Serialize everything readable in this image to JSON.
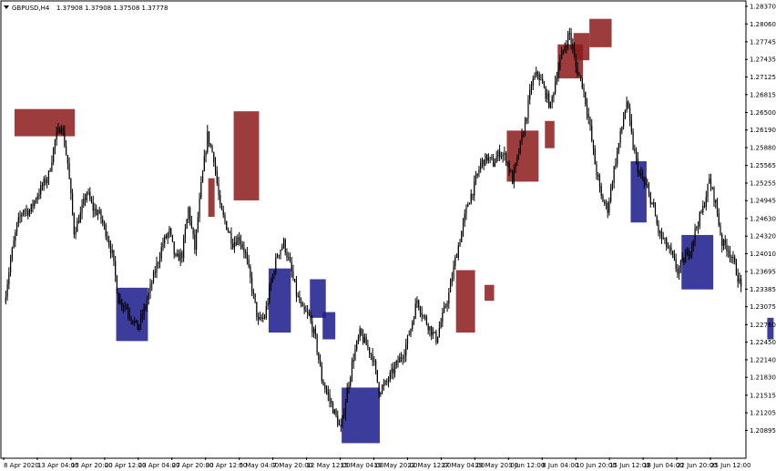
{
  "header": {
    "symbol_label": "GBPUSD,H4",
    "quote_values": "1.37908 1.37908 1.37508 1.37778",
    "menu_arrow_icon": "triangle-down-icon"
  },
  "colors": {
    "supply_zone": "#8B1A1A",
    "demand_zone": "#1A1A8B",
    "candle": "#000000",
    "frame": "#000000",
    "background": "#FFFFFF"
  },
  "chart_data": {
    "type": "line",
    "title": "GBPUSD,H4",
    "subtitle": "1.37908 1.37908 1.37508 1.37778",
    "ylim": [
      1.2042,
      1.2845
    ],
    "y_ticks": [
      "1.28370",
      "1.28060",
      "1.27745",
      "1.27435",
      "1.27125",
      "1.26815",
      "1.26500",
      "1.26190",
      "1.25880",
      "1.25565",
      "1.25255",
      "1.24945",
      "1.24630",
      "1.24320",
      "1.24010",
      "1.23695",
      "1.23385",
      "1.23075",
      "1.22760",
      "1.22450",
      "1.22140",
      "1.21830",
      "1.21515",
      "1.21205",
      "1.20895"
    ],
    "x_ticks": [
      "8 Apr 2020",
      "13 Apr 04:00",
      "15 Apr 20:00",
      "20 Apr 12:00",
      "23 Apr 04:00",
      "27 Apr 20:00",
      "30 Apr 12:00",
      "5 May 04:00",
      "7 May 20:00",
      "12 May 12:00",
      "15 May 04:00",
      "19 May 20:00",
      "22 May 12:00",
      "27 May 04:00",
      "29 May 20:00",
      "3 Jun 12:00",
      "8 Jun 04:00",
      "10 Jun 20:00",
      "15 Jun 12:00",
      "18 Jun 04:00",
      "22 Jun 20:00",
      "25 Jun 12:00"
    ],
    "series": [
      {
        "values": [
          1.2315,
          1.239,
          1.245,
          1.248,
          1.2475,
          1.25,
          1.252,
          1.254,
          1.26,
          1.263,
          1.256,
          1.244,
          1.247,
          1.251,
          1.248,
          1.247,
          1.244,
          1.24,
          1.232,
          1.231,
          1.229,
          1.227,
          1.23,
          1.234,
          1.238,
          1.242,
          1.244,
          1.239,
          1.24,
          1.248,
          1.241,
          1.252,
          1.261,
          1.257,
          1.248,
          1.245,
          1.242,
          1.243,
          1.24,
          1.234,
          1.228,
          1.229,
          1.235,
          1.24,
          1.242,
          1.238,
          1.233,
          1.23,
          1.229,
          1.225,
          1.218,
          1.215,
          1.212,
          1.209,
          1.216,
          1.222,
          1.226,
          1.224,
          1.222,
          1.216,
          1.217,
          1.219,
          1.221,
          1.223,
          1.227,
          1.232,
          1.229,
          1.227,
          1.225,
          1.229,
          1.233,
          1.239,
          1.244,
          1.249,
          1.252,
          1.256,
          1.257,
          1.256,
          1.258,
          1.257,
          1.253,
          1.258,
          1.263,
          1.27,
          1.272,
          1.269,
          1.266,
          1.272,
          1.276,
          1.279,
          1.273,
          1.27,
          1.264,
          1.256,
          1.25,
          1.248,
          1.255,
          1.261,
          1.267,
          1.259,
          1.254,
          1.252,
          1.249,
          1.244,
          1.242,
          1.24,
          1.237,
          1.239,
          1.241,
          1.245,
          1.248,
          1.253,
          1.249,
          1.242,
          1.241,
          1.238,
          1.234
        ]
      }
    ],
    "supply_zones": [
      {
        "x_start": 2.0,
        "x_end": 11.5,
        "y_low": 1.2608,
        "y_high": 1.2656
      },
      {
        "x_start": 32.5,
        "x_end": 33.5,
        "y_low": 1.2466,
        "y_high": 1.2534
      },
      {
        "x_start": 36.5,
        "x_end": 40.5,
        "y_low": 1.2495,
        "y_high": 1.2652
      },
      {
        "x_start": 79.5,
        "x_end": 84.5,
        "y_low": 1.2528,
        "y_high": 1.2618
      },
      {
        "x_start": 85.5,
        "x_end": 87.0,
        "y_low": 1.2587,
        "y_high": 1.2635
      },
      {
        "x_start": 87.5,
        "x_end": 91.5,
        "y_low": 1.271,
        "y_high": 1.277
      },
      {
        "x_start": 90.0,
        "x_end": 92.5,
        "y_low": 1.2742,
        "y_high": 1.279
      },
      {
        "x_start": 92.5,
        "x_end": 96.0,
        "y_low": 1.2765,
        "y_high": 1.2815
      },
      {
        "x_start": 71.5,
        "x_end": 74.5,
        "y_low": 1.2262,
        "y_high": 1.2372
      },
      {
        "x_start": 76.0,
        "x_end": 77.5,
        "y_low": 1.2318,
        "y_high": 1.2346
      }
    ],
    "demand_zones": [
      {
        "x_start": 18.0,
        "x_end": 23.0,
        "y_low": 1.2247,
        "y_high": 1.2341
      },
      {
        "x_start": 42.0,
        "x_end": 45.5,
        "y_low": 1.2262,
        "y_high": 1.2375
      },
      {
        "x_start": 48.5,
        "x_end": 51.0,
        "y_low": 1.2288,
        "y_high": 1.2356
      },
      {
        "x_start": 50.5,
        "x_end": 52.5,
        "y_low": 1.225,
        "y_high": 1.2298
      },
      {
        "x_start": 53.5,
        "x_end": 59.5,
        "y_low": 1.2067,
        "y_high": 1.2165
      },
      {
        "x_start": 99.0,
        "x_end": 101.5,
        "y_low": 1.2456,
        "y_high": 1.2564
      },
      {
        "x_start": 107.0,
        "x_end": 112.0,
        "y_low": 1.2338,
        "y_high": 1.2434
      },
      {
        "x_start": 120.5,
        "x_end": 121.5,
        "y_low": 1.225,
        "y_high": 1.2288
      }
    ]
  }
}
